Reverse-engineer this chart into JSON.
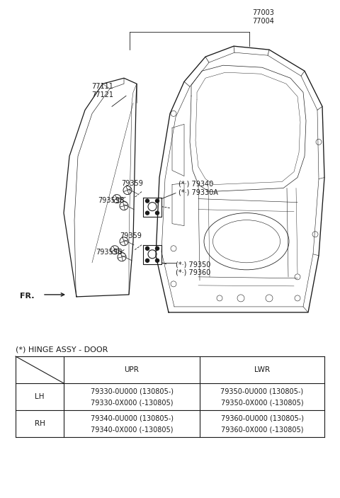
{
  "bg_color": "#ffffff",
  "line_color": "#1a1a1a",
  "title": "(*) HINGE ASSY - DOOR",
  "table": {
    "headers": [
      "",
      "UPR",
      "LWR"
    ],
    "rows": [
      {
        "label": "LH",
        "upr": [
          "79330-0U000 (130805-)",
          "79330-0X000 (-130805)"
        ],
        "lwr": [
          "79350-0U000 (130805-)",
          "79350-0X000 (-130805)"
        ]
      },
      {
        "label": "RH",
        "upr": [
          "79340-0U000 (130805-)",
          "79340-0X000 (-130805)"
        ],
        "lwr": [
          "79360-0U000 (130805-)",
          "79360-0X000 (-130805)"
        ]
      }
    ]
  },
  "fig_width": 4.8,
  "fig_height": 7.03,
  "dpi": 100
}
